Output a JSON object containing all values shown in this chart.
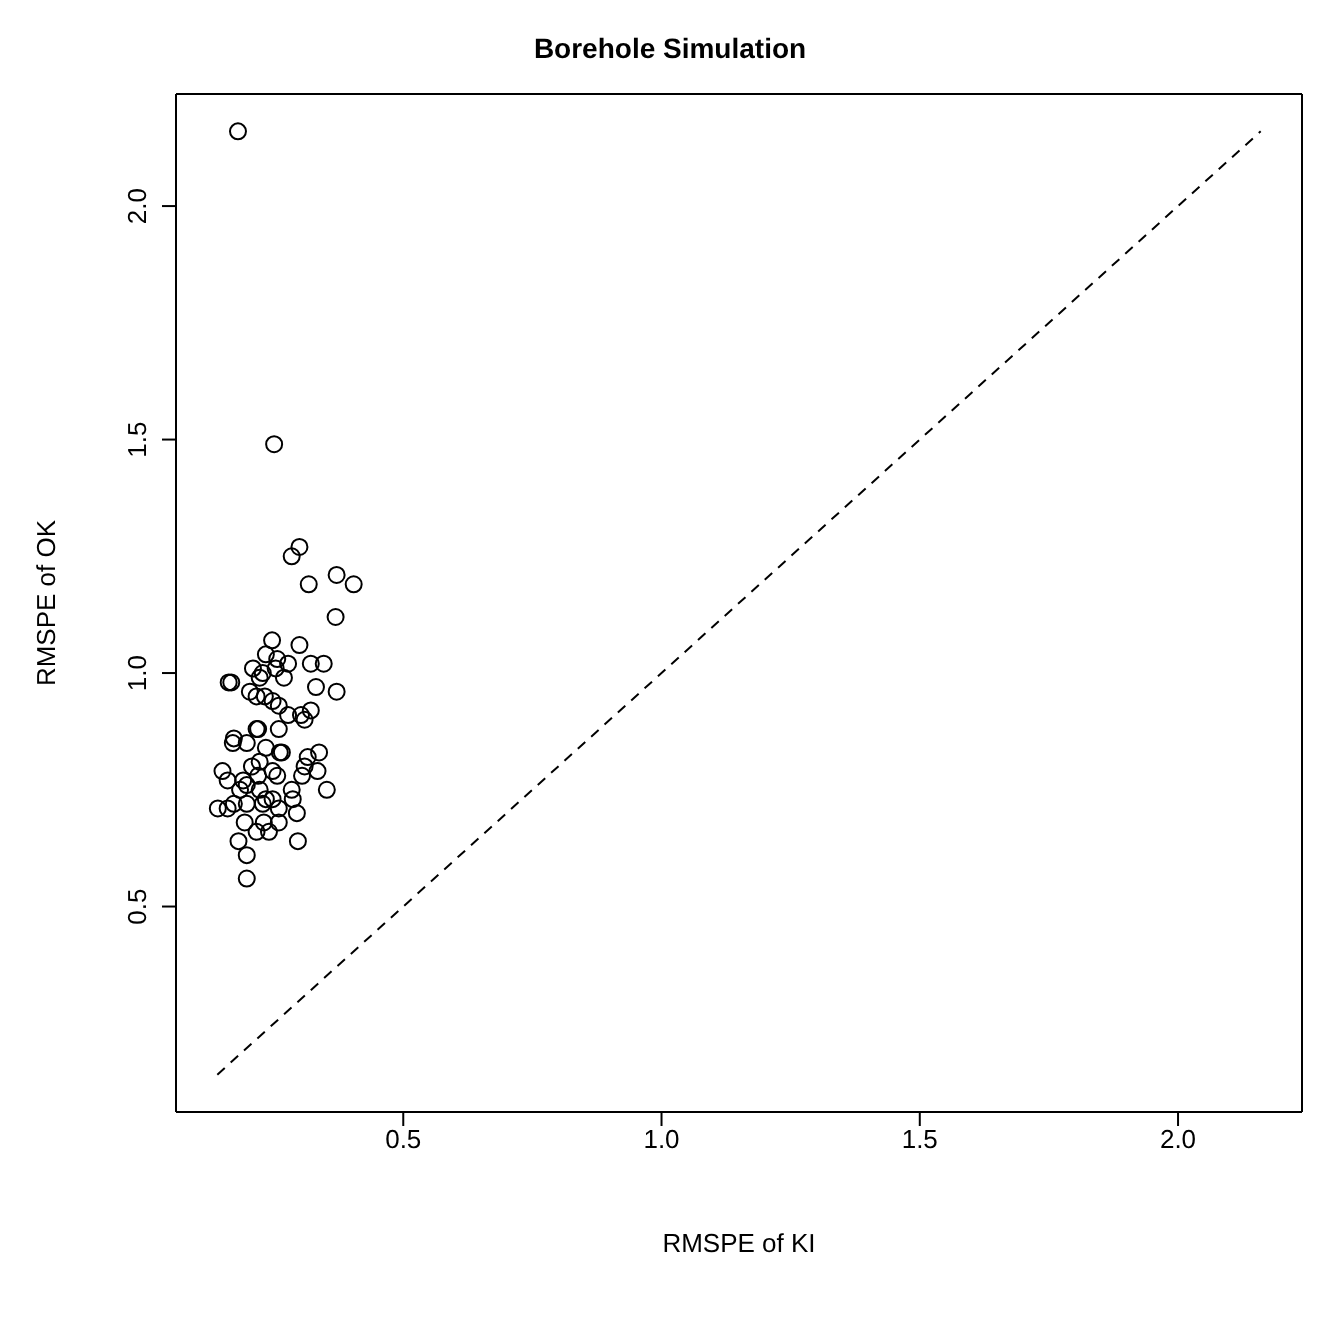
{
  "chart_data": {
    "type": "scatter",
    "title": "Borehole Simulation",
    "xlabel": "RMSPE of KI",
    "ylabel": "RMSPE of OK",
    "xlim": [
      0.06,
      2.24
    ],
    "ylim": [
      0.06,
      2.24
    ],
    "xticks": [
      0.5,
      {
        "value": 1,
        "label": "1.0"
      },
      1.5,
      {
        "value": 2,
        "label": "2.0"
      }
    ],
    "yticks": [
      0.5,
      {
        "value": 1,
        "label": "1.0"
      },
      1.5,
      {
        "value": 2,
        "label": "2.0"
      }
    ],
    "series": [
      {
        "color": "#000000",
        "marker": "circle",
        "x": [
          0.18,
          0.25,
          0.284,
          0.299,
          0.317,
          0.371,
          0.404,
          0.369,
          0.246,
          0.299,
          0.234,
          0.256,
          0.277,
          0.321,
          0.346,
          0.209,
          0.228,
          0.253,
          0.269,
          0.162,
          0.167,
          0.222,
          0.331,
          0.371,
          0.203,
          0.216,
          0.232,
          0.247,
          0.259,
          0.277,
          0.302,
          0.321,
          0.309,
          0.216,
          0.219,
          0.259,
          0.172,
          0.17,
          0.197,
          0.265,
          0.261,
          0.234,
          0.337,
          0.315,
          0.222,
          0.207,
          0.247,
          0.309,
          0.334,
          0.15,
          0.16,
          0.19,
          0.219,
          0.256,
          0.304,
          0.184,
          0.197,
          0.222,
          0.284,
          0.352,
          0.286,
          0.234,
          0.228,
          0.247,
          0.197,
          0.141,
          0.16,
          0.172,
          0.259,
          0.294,
          0.193,
          0.23,
          0.259,
          0.216,
          0.24,
          0.296,
          0.181,
          0.197,
          0.197
        ],
        "values": [
          2.16,
          1.49,
          1.25,
          1.27,
          1.19,
          1.21,
          1.19,
          1.12,
          1.07,
          1.06,
          1.04,
          1.03,
          1.02,
          1.02,
          1.02,
          1.01,
          1.0,
          1.01,
          0.99,
          0.98,
          0.98,
          0.99,
          0.97,
          0.96,
          0.96,
          0.95,
          0.95,
          0.94,
          0.93,
          0.91,
          0.91,
          0.92,
          0.9,
          0.88,
          0.88,
          0.88,
          0.86,
          0.85,
          0.85,
          0.83,
          0.83,
          0.84,
          0.83,
          0.82,
          0.81,
          0.8,
          0.79,
          0.8,
          0.79,
          0.79,
          0.77,
          0.77,
          0.78,
          0.78,
          0.78,
          0.75,
          0.76,
          0.75,
          0.75,
          0.75,
          0.73,
          0.73,
          0.72,
          0.73,
          0.72,
          0.71,
          0.71,
          0.72,
          0.71,
          0.7,
          0.68,
          0.68,
          0.68,
          0.66,
          0.66,
          0.64,
          0.64,
          0.61,
          0.56
        ]
      },
      {
        "type": "line",
        "color": "#000000",
        "marker": "none",
        "line_style": "dashed",
        "x": [
          0.14,
          2.16
        ],
        "values": [
          0.14,
          2.16
        ]
      }
    ]
  }
}
